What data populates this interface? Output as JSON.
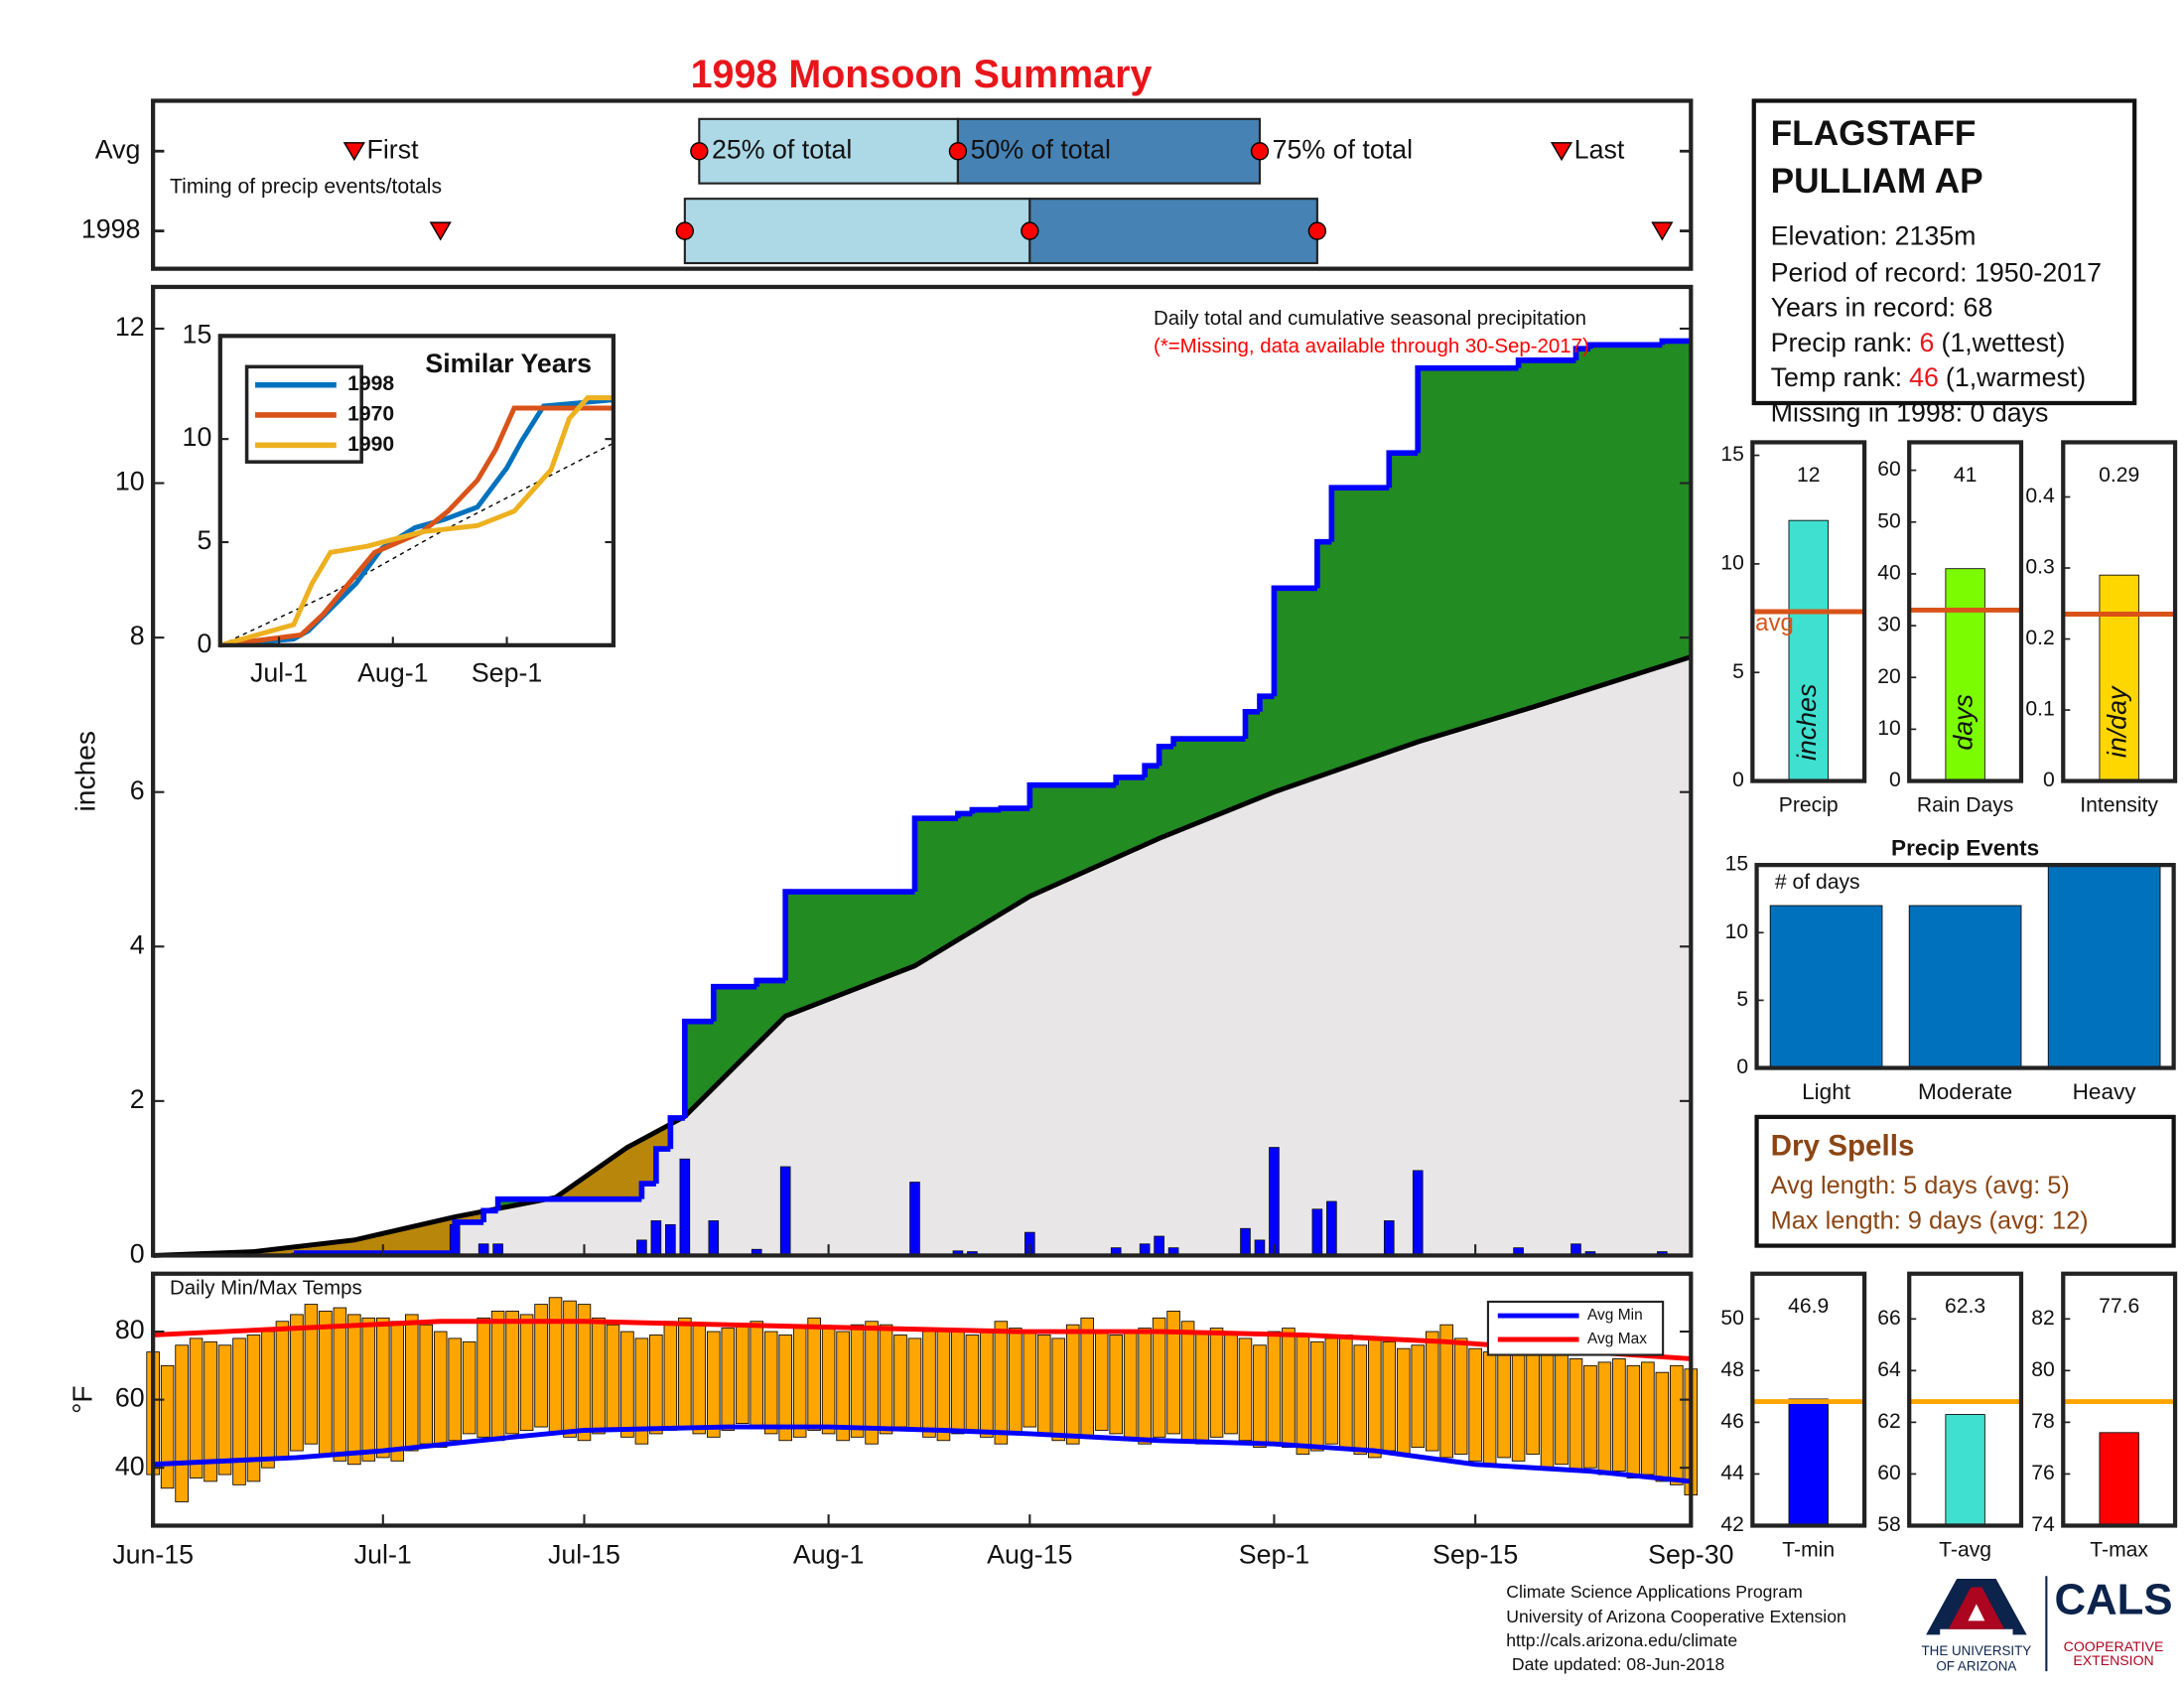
{
  "title": "1998 Monsoon Summary",
  "chart_data": [
    {
      "type": "timing",
      "xlim": [
        0,
        107
      ],
      "rows": [
        {
          "name": "Avg",
          "first": 14,
          "p25": 38,
          "p50": 56,
          "p75": 77,
          "last": 98
        },
        {
          "name": "1998",
          "first": 20,
          "p25": 37,
          "p50": 61,
          "p75": 81,
          "last": 105
        }
      ],
      "labels": {
        "first": "First",
        "p25": "25% of total",
        "p50": "50% of total",
        "p75": "75% of total",
        "last": "Last"
      },
      "note": "Timing of precip events/totals",
      "colors": [
        "#add8e6",
        "#4682b4"
      ]
    },
    {
      "type": "cumulative",
      "xlim": [
        0,
        107
      ],
      "ylim": [
        0,
        12.54
      ],
      "yticks": [
        0,
        2,
        4,
        6,
        8,
        10,
        12
      ],
      "ylabel": "inches",
      "annotation": "Daily total and cumulative seasonal precipitation",
      "note": "(*=Missing, data available through 30-Sep-2017)",
      "daily": {
        "color": "#0000ff",
        "x": [
          10,
          21,
          23,
          24,
          34,
          35,
          36,
          37,
          39,
          42,
          44,
          53,
          56,
          57,
          59,
          61,
          67,
          69,
          70,
          71,
          76,
          77,
          78,
          81,
          82,
          86,
          88,
          95,
          99,
          100,
          105
        ],
        "values": [
          0.03,
          0.4,
          0.15,
          0.15,
          0.2,
          0.45,
          0.4,
          1.25,
          0.45,
          0.08,
          1.15,
          0.95,
          0.06,
          0.05,
          0.02,
          0.3,
          0.1,
          0.15,
          0.25,
          0.1,
          0.35,
          0.2,
          1.4,
          0.6,
          0.7,
          0.45,
          1.1,
          0.1,
          0.15,
          0.05,
          0.05
        ]
      },
      "avg": {
        "color": "#000000",
        "x": [
          0,
          7,
          14,
          21,
          28,
          33,
          37,
          44,
          53,
          61,
          70,
          78,
          88,
          96,
          107
        ],
        "values": [
          0,
          0.05,
          0.2,
          0.5,
          0.75,
          1.4,
          1.8,
          3.1,
          3.75,
          4.65,
          5.4,
          6.0,
          6.65,
          7.1,
          7.75
        ]
      },
      "above_color": "#228b22",
      "below_color": "#b8860b",
      "base_color": "#e8e6e6"
    },
    {
      "type": "inset",
      "title": "Similar Years",
      "xlim": [
        0,
        107
      ],
      "ylim": [
        0,
        15
      ],
      "yticks": [
        0,
        5,
        10,
        15
      ],
      "xticks": [
        {
          "value": 16,
          "label": "Jul-1"
        },
        {
          "value": 47,
          "label": "Aug-1"
        },
        {
          "value": 78,
          "label": "Sep-1"
        }
      ],
      "avg_line": {
        "x": [
          0,
          30,
          60,
          107
        ],
        "values": [
          0,
          2.5,
          5.5,
          9.8
        ]
      },
      "series": [
        {
          "name": "1998",
          "color": "#0072bd",
          "x": [
            0,
            20,
            24,
            37,
            44,
            53,
            61,
            70,
            78,
            82,
            88,
            107
          ],
          "values": [
            0,
            0.3,
            0.7,
            3.0,
            4.7,
            5.7,
            6.1,
            6.7,
            8.6,
            9.9,
            11.6,
            11.9
          ]
        },
        {
          "name": "1970",
          "color": "#d95319",
          "x": [
            0,
            22,
            28,
            35,
            42,
            55,
            62,
            70,
            75,
            80,
            107
          ],
          "values": [
            0,
            0.5,
            1.5,
            3.0,
            4.5,
            5.5,
            6.5,
            8.0,
            9.5,
            11.5,
            11.5
          ]
        },
        {
          "name": "1990",
          "color": "#edb120",
          "x": [
            0,
            20,
            25,
            30,
            40,
            55,
            70,
            80,
            90,
            95,
            100,
            107
          ],
          "values": [
            0,
            1.0,
            3.0,
            4.5,
            4.8,
            5.5,
            5.8,
            6.5,
            8.5,
            11.0,
            12.0,
            12.0
          ]
        }
      ]
    },
    {
      "type": "range-bars",
      "title": "Daily Min/Max Temps",
      "ylabel": "°F",
      "xlim": [
        0,
        107
      ],
      "ylim": [
        23,
        97
      ],
      "yticks": [
        40,
        60,
        80
      ],
      "xticks": [
        {
          "value": 0,
          "label": "Jun-15"
        },
        {
          "value": 16,
          "label": "Jul-1"
        },
        {
          "value": 30,
          "label": "Jul-15"
        },
        {
          "value": 47,
          "label": "Aug-1"
        },
        {
          "value": 61,
          "label": "Aug-15"
        },
        {
          "value": 78,
          "label": "Sep-1"
        },
        {
          "value": 92,
          "label": "Sep-15"
        },
        {
          "value": 107,
          "label": "Sep-30"
        }
      ],
      "color": "#ffa500",
      "x": [
        0,
        1,
        2,
        3,
        4,
        5,
        6,
        7,
        8,
        9,
        10,
        11,
        12,
        13,
        14,
        15,
        16,
        17,
        18,
        19,
        20,
        21,
        22,
        23,
        24,
        25,
        26,
        27,
        28,
        29,
        30,
        31,
        32,
        33,
        34,
        35,
        36,
        37,
        38,
        39,
        40,
        41,
        42,
        43,
        44,
        45,
        46,
        47,
        48,
        49,
        50,
        51,
        52,
        53,
        54,
        55,
        56,
        57,
        58,
        59,
        60,
        61,
        62,
        63,
        64,
        65,
        66,
        67,
        68,
        69,
        70,
        71,
        72,
        73,
        74,
        75,
        76,
        77,
        78,
        79,
        80,
        81,
        82,
        83,
        84,
        85,
        86,
        87,
        88,
        89,
        90,
        91,
        92,
        93,
        94,
        95,
        96,
        97,
        98,
        99,
        100,
        101,
        102,
        103,
        104,
        105,
        106,
        107
      ],
      "max": [
        74,
        70,
        76,
        78,
        77,
        76,
        78,
        79,
        80,
        83,
        85,
        88,
        86,
        87,
        85,
        84,
        84,
        83,
        85,
        82,
        80,
        78,
        77,
        84,
        86,
        86,
        85,
        88,
        90,
        89,
        88,
        84,
        82,
        80,
        78,
        79,
        83,
        84,
        82,
        80,
        81,
        82,
        83,
        80,
        79,
        82,
        84,
        81,
        80,
        82,
        83,
        82,
        79,
        78,
        80,
        81,
        80,
        79,
        80,
        83,
        81,
        80,
        79,
        78,
        82,
        84,
        80,
        79,
        80,
        81,
        84,
        86,
        83,
        80,
        81,
        79,
        78,
        76,
        80,
        81,
        79,
        77,
        78,
        79,
        76,
        78,
        77,
        75,
        76,
        80,
        82,
        78,
        75,
        74,
        73,
        76,
        74,
        75,
        73,
        72,
        70,
        71,
        72,
        70,
        71,
        68,
        70,
        69
      ],
      "min": [
        38,
        34,
        30,
        37,
        36,
        38,
        35,
        36,
        40,
        43,
        45,
        47,
        44,
        42,
        41,
        42,
        43,
        42,
        45,
        47,
        46,
        48,
        50,
        49,
        48,
        50,
        51,
        52,
        50,
        49,
        48,
        50,
        51,
        49,
        47,
        50,
        51,
        52,
        50,
        49,
        51,
        53,
        52,
        50,
        48,
        49,
        51,
        50,
        48,
        49,
        47,
        50,
        52,
        51,
        49,
        48,
        50,
        51,
        49,
        47,
        50,
        52,
        50,
        48,
        47,
        49,
        51,
        50,
        48,
        47,
        49,
        50,
        48,
        47,
        49,
        50,
        48,
        46,
        47,
        46,
        44,
        45,
        47,
        46,
        44,
        43,
        45,
        44,
        46,
        45,
        43,
        44,
        42,
        41,
        43,
        42,
        44,
        40,
        41,
        39,
        40,
        38,
        39,
        37,
        38,
        36,
        35,
        32
      ],
      "series": [
        {
          "name": "Avg Min",
          "color": "#0000ff",
          "x": [
            0,
            10,
            16,
            25,
            30,
            40,
            47,
            55,
            61,
            70,
            78,
            85,
            92,
            100,
            107
          ],
          "values": [
            41,
            43,
            45,
            49,
            51,
            52,
            52,
            51,
            50,
            48,
            47,
            45,
            41,
            39,
            36
          ]
        },
        {
          "name": "Avg Max",
          "color": "#ff0000",
          "x": [
            0,
            10,
            20,
            30,
            40,
            50,
            60,
            70,
            80,
            90,
            100,
            107
          ],
          "values": [
            79,
            81,
            83,
            83,
            82,
            81,
            80,
            80,
            79,
            77,
            74,
            72
          ]
        }
      ]
    },
    {
      "type": "summary-bar",
      "label": "Precip",
      "unit": "inches",
      "value": 12,
      "avg": 7.8,
      "avg_label": "avg",
      "ylim": [
        0,
        15.6
      ],
      "yticks": [
        0,
        5,
        10,
        15
      ],
      "color": "#40e0d0",
      "avg_color": "#d95319"
    },
    {
      "type": "summary-bar",
      "label": "Rain Days",
      "unit": "days",
      "value": 41,
      "avg": 33,
      "ylim": [
        0,
        65.4
      ],
      "yticks": [
        0,
        10,
        20,
        30,
        40,
        50,
        60
      ],
      "color": "#7cfc00",
      "avg_color": "#d95319"
    },
    {
      "type": "summary-bar",
      "label": "Intensity",
      "unit": "in/day",
      "value": 0.29,
      "avg": 0.235,
      "ylim": [
        0,
        0.477
      ],
      "yticks": [
        0,
        0.1,
        0.2,
        0.3,
        0.4
      ],
      "color": "#ffd700",
      "avg_color": "#d95319"
    },
    {
      "type": "bar",
      "title": "Precip Events",
      "note": "# of days",
      "categories": [
        "Light",
        "Moderate",
        "Heavy"
      ],
      "values": [
        12,
        12,
        15
      ],
      "ylim": [
        0,
        15
      ],
      "yticks": [
        0,
        5,
        10,
        15
      ],
      "color": "#0072bd"
    },
    {
      "type": "summary-bar",
      "label": "T-min",
      "value": 46.9,
      "avg": 46.8,
      "ylim": [
        42,
        51.75
      ],
      "yticks": [
        42,
        44,
        46,
        48,
        50
      ],
      "color": "#0000ff",
      "avg_color": "#ffa500"
    },
    {
      "type": "summary-bar",
      "label": "T-avg",
      "value": 62.3,
      "avg": 62.8,
      "ylim": [
        58,
        67.75
      ],
      "yticks": [
        58,
        60,
        62,
        64,
        66
      ],
      "color": "#40e0d0",
      "avg_color": "#ffa500"
    },
    {
      "type": "summary-bar",
      "label": "T-max",
      "value": 77.6,
      "avg": 78.8,
      "ylim": [
        74,
        83.75
      ],
      "yticks": [
        74,
        76,
        78,
        80,
        82
      ],
      "color": "#ff0000",
      "avg_color": "#ffa500"
    }
  ],
  "station": {
    "name_lines": [
      "FLAGSTAFF",
      "PULLIAM AP"
    ],
    "elevation": "Elevation: 2135m",
    "period": "Period of record: 1950-2017",
    "years": "Years in record: 68",
    "precip_rank": {
      "label": "Precip rank:",
      "value": 6,
      "note": "(1,wettest)"
    },
    "temp_rank": {
      "label": "Temp rank:",
      "value": 46,
      "note": "(1,warmest)"
    },
    "missing": "Missing in 1998: 0 days"
  },
  "dry_spells": {
    "title": "Dry Spells",
    "lines": [
      "Avg length: 5 days (avg: 5)",
      "Max length: 9 days (avg: 12)"
    ]
  },
  "footer": [
    "Climate Science Applications Program",
    "University of Arizona Cooperative Extension",
    "http://cals.arizona.edu/climate",
    "Date updated: 08-Jun-2018"
  ],
  "logo": {
    "university": [
      "THE UNIVERSITY",
      "OF ARIZONA"
    ],
    "cals": "CALS",
    "extension": [
      "COOPERATIVE",
      "EXTENSION"
    ]
  }
}
